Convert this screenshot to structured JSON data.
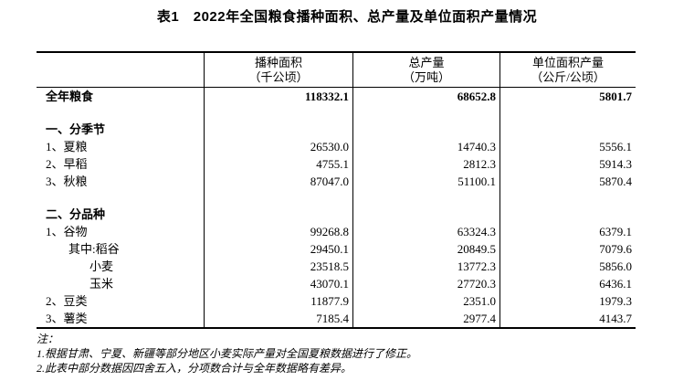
{
  "title": "表1　2022年全国粮食播种面积、总产量及单位面积产量情况",
  "table": {
    "columns": [
      {
        "label": "",
        "sub": ""
      },
      {
        "label": "播种面积",
        "sub": "（千公顷）"
      },
      {
        "label": "总产量",
        "sub": "（万吨）"
      },
      {
        "label": "单位面积产量",
        "sub": "（公斤/公顷）"
      }
    ],
    "rows": [
      {
        "label": "全年粮食",
        "values": [
          "118332.1",
          "68652.8",
          "5801.7"
        ],
        "bold": true,
        "indent": 0
      },
      {
        "label": "",
        "values": [
          "",
          "",
          ""
        ],
        "spacer": true
      },
      {
        "label": "一、分季节",
        "values": [
          "",
          "",
          ""
        ],
        "bold": true,
        "indent": 0
      },
      {
        "label": "1、夏粮",
        "values": [
          "26530.0",
          "14740.3",
          "5556.1"
        ],
        "indent": 0
      },
      {
        "label": "2、早稻",
        "values": [
          "4755.1",
          "2812.3",
          "5914.3"
        ],
        "indent": 0
      },
      {
        "label": "3、秋粮",
        "values": [
          "87047.0",
          "51100.1",
          "5870.4"
        ],
        "indent": 0
      },
      {
        "label": "",
        "values": [
          "",
          "",
          ""
        ],
        "spacer": true
      },
      {
        "label": "二、分品种",
        "values": [
          "",
          "",
          ""
        ],
        "bold": true,
        "indent": 0
      },
      {
        "label": "1、谷物",
        "values": [
          "99268.8",
          "63324.3",
          "6379.1"
        ],
        "indent": 0
      },
      {
        "label": "其中:稻谷",
        "values": [
          "29450.1",
          "20849.5",
          "7079.6"
        ],
        "indent": 1
      },
      {
        "label": "小麦",
        "values": [
          "23518.5",
          "13772.3",
          "5856.0"
        ],
        "indent": 2
      },
      {
        "label": "玉米",
        "values": [
          "43070.1",
          "27720.3",
          "6436.1"
        ],
        "indent": 2
      },
      {
        "label": "2、豆类",
        "values": [
          "11877.9",
          "2351.0",
          "1979.3"
        ],
        "indent": 0
      },
      {
        "label": "3、薯类",
        "values": [
          "7185.4",
          "2977.4",
          "4143.7"
        ],
        "indent": 0
      }
    ]
  },
  "notes": {
    "label": "注：",
    "items": [
      "1.根据甘肃、宁夏、新疆等部分地区小麦实际产量对全国夏粮数据进行了修正。",
      "2.此表中部分数据因四舍五入，分项数合计与全年数据略有差异。"
    ]
  }
}
